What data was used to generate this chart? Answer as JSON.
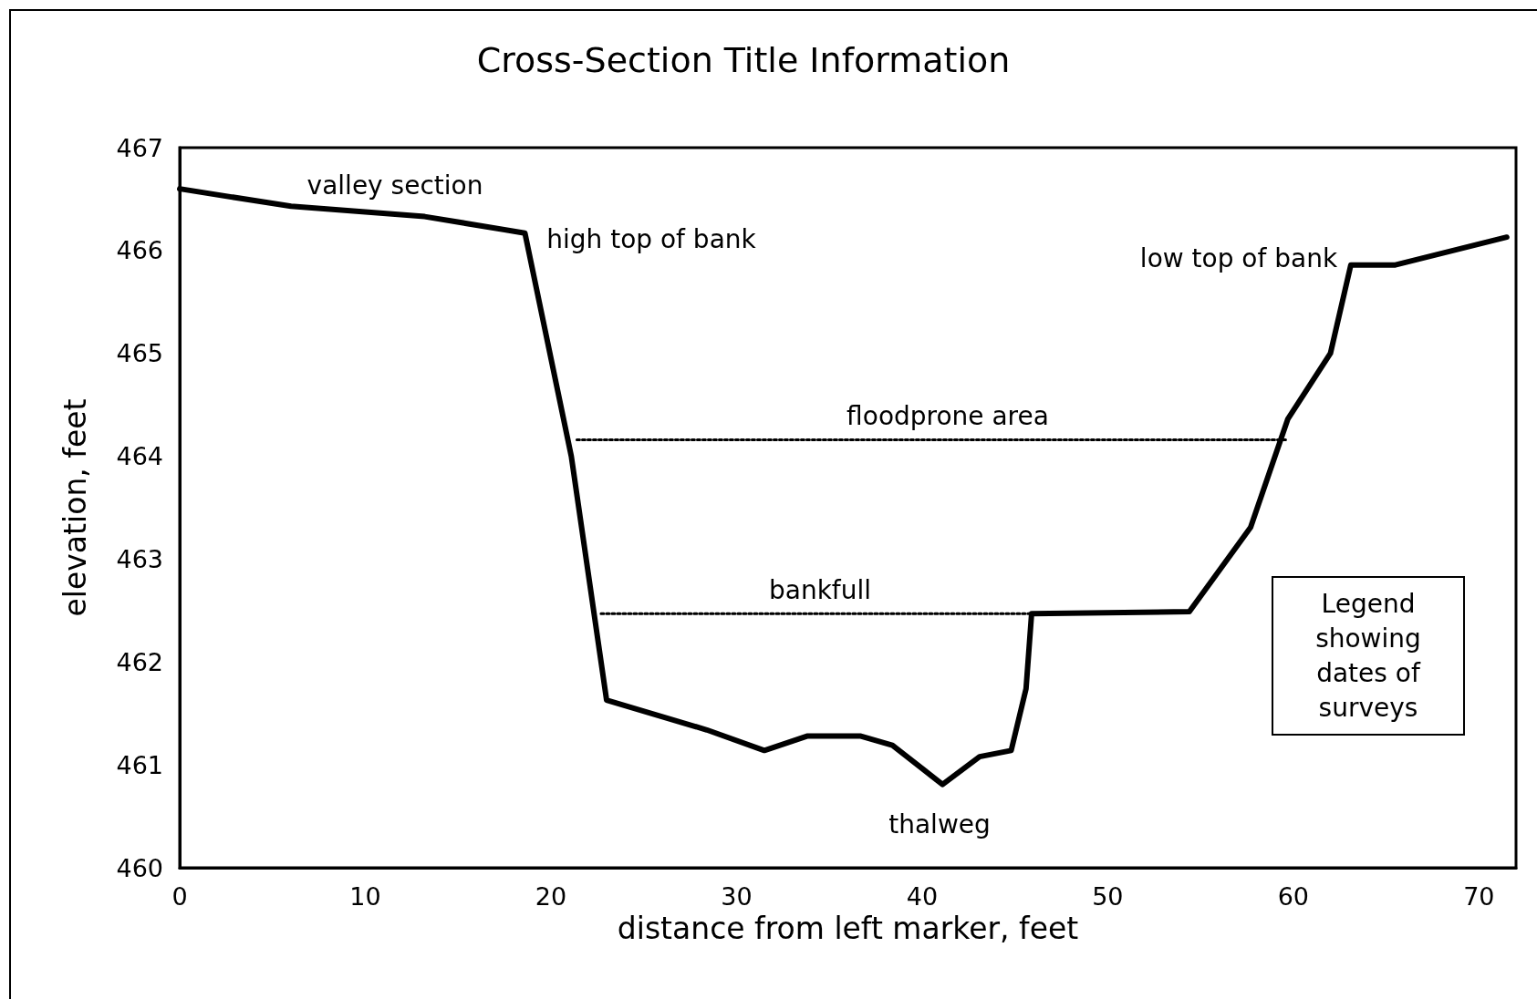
{
  "chart_data": {
    "type": "line",
    "title": "Cross-Section Title Information",
    "xlabel": "distance from left marker, feet",
    "ylabel": "elevation, feet",
    "xlim": [
      0,
      72
    ],
    "xticks": [
      0,
      10,
      20,
      30,
      40,
      50,
      60,
      70
    ],
    "ylim": [
      460,
      467
    ],
    "yticks": [
      460,
      461,
      462,
      463,
      464,
      465,
      466,
      467
    ],
    "grid": false,
    "marker": "none",
    "series": [
      {
        "color": "#000000",
        "line_style": "solid",
        "x": [
          0,
          6.0,
          13.2,
          18.6,
          21.1,
          23.0,
          28.4,
          31.5,
          33.8,
          36.7,
          38.4,
          41.1,
          43.1,
          44.8,
          45.6,
          45.9,
          54.4,
          57.7,
          59.7,
          62.0,
          63.1,
          65.5,
          71.5
        ],
        "values": [
          466.6,
          466.43,
          466.33,
          466.17,
          464.0,
          461.63,
          461.34,
          461.14,
          461.28,
          461.28,
          461.19,
          460.81,
          461.08,
          461.14,
          461.74,
          462.47,
          462.49,
          463.31,
          464.36,
          465.0,
          465.86,
          465.86,
          466.13
        ]
      },
      {
        "color": "#000000",
        "line_style": "dotted",
        "x": [
          21.4,
          59.6
        ],
        "values": [
          464.16,
          464.16
        ]
      },
      {
        "color": "#000000",
        "line_style": "dotted",
        "x": [
          22.7,
          45.8
        ],
        "values": [
          462.47,
          462.47
        ]
      }
    ],
    "annotations": [
      "valley section",
      "high top of bank",
      "low top of bank",
      "floodprone area",
      "bankfull",
      "thalweg",
      "Legend showing dates of surveys"
    ]
  }
}
